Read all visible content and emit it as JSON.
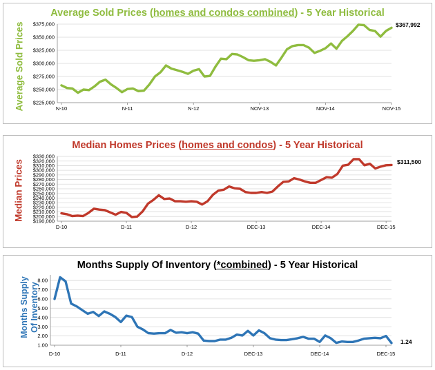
{
  "charts": [
    {
      "color": "#8fbc3f",
      "title_parts": [
        "Average Sold Prices (",
        "homes and condos combined",
        ") - 5 Year Historical"
      ],
      "chart_data": {
        "type": "line",
        "title": "Average Sold Prices (homes and condos combined) - 5 Year Historical",
        "ylabel": "Average Sold Prices",
        "xlabel": "",
        "x_tick_labels": [
          "N-10",
          "N-11",
          "N-12",
          "NOV-13",
          "NOV-14",
          "NOV-15"
        ],
        "y_tick_labels": [
          "$225,000",
          "$250,000",
          "$275,000",
          "$300,000",
          "$325,000",
          "$350,000",
          "$375,000"
        ],
        "y_ticks": [
          225000,
          250000,
          275000,
          300000,
          325000,
          350000,
          375000
        ],
        "ylim": [
          225000,
          375000
        ],
        "grid": true,
        "legend": "none",
        "last_value_label": "$367,992",
        "series": [
          {
            "values": [
              258000,
              253000,
              252000,
              244000,
              250000,
              249000,
              256000,
              265000,
              269000,
              260000,
              253000,
              245000,
              251000,
              252000,
              247000,
              248000,
              260000,
              275000,
              283000,
              296000,
              290000,
              287000,
              284000,
              280000,
              286000,
              289000,
              275000,
              276000,
              294000,
              309000,
              308000,
              318000,
              317000,
              312000,
              306000,
              305000,
              306000,
              308000,
              303000,
              296000,
              311000,
              327000,
              333000,
              335000,
              335000,
              330000,
              320000,
              324000,
              329000,
              338000,
              328000,
              343000,
              352000,
              362000,
              374000,
              373000,
              364000,
              362000,
              351000,
              362000,
              367992
            ]
          }
        ]
      }
    },
    {
      "color": "#c0392b",
      "title_parts": [
        "Median Homes Prices (",
        "homes and condos",
        ") - 5 Year Historical"
      ],
      "chart_data": {
        "type": "line",
        "title": "Median Homes Prices (homes and condos) - 5 Year Historical",
        "ylabel": "Median Prices",
        "xlabel": "",
        "x_tick_labels": [
          "D-10",
          "D-11",
          "D-12",
          "DEC-13",
          "DEC-14",
          "DEC-15"
        ],
        "y_tick_labels": [
          "$190,000",
          "$200,000",
          "$210,000",
          "$220,000",
          "$230,000",
          "$240,000",
          "$250,000",
          "$260,000",
          "$270,000",
          "$280,000",
          "$290,000",
          "$300,000",
          "$310,000",
          "$320,000",
          "$330,000"
        ],
        "y_ticks": [
          190000,
          200000,
          210000,
          220000,
          230000,
          240000,
          250000,
          260000,
          270000,
          280000,
          290000,
          300000,
          310000,
          320000,
          330000
        ],
        "ylim": [
          190000,
          330000
        ],
        "grid": true,
        "legend": "none",
        "last_value_label": "$311,500",
        "series": [
          {
            "values": [
              207000,
              205000,
              201000,
              202000,
              201000,
              208000,
              217000,
              215000,
              214000,
              209000,
              204000,
              210000,
              208000,
              199000,
              200000,
              211000,
              228000,
              236000,
              246000,
              238000,
              239000,
              233000,
              233000,
              232000,
              233000,
              232000,
              226000,
              233000,
              247000,
              256000,
              258000,
              265000,
              261000,
              260000,
              253000,
              251000,
              251000,
              253000,
              251000,
              254000,
              265000,
              275000,
              276000,
              283000,
              280000,
              276000,
              273000,
              273000,
              279000,
              285000,
              284000,
              292000,
              310000,
              312000,
              324000,
              324000,
              311000,
              314000,
              304000,
              308000,
              311000,
              311500
            ]
          }
        ]
      }
    },
    {
      "color": "#2e75b6",
      "title_parts": [
        "Months Supply Of Inventory (",
        "*combined",
        ") - 5 Year Historical"
      ],
      "chart_data": {
        "type": "line",
        "title": "Months Supply Of Inventory (*combined) - 5 Year Historical",
        "ylabel": "Months Supply Of Inventory",
        "xlabel": "",
        "x_tick_labels": [
          "D-10",
          "D-11",
          "D-12",
          "DEC-13",
          "DEC-14",
          "DEC-15"
        ],
        "y_tick_labels": [
          "1.00",
          "2.00",
          "3.00",
          "4.00",
          "5.00",
          "6.00",
          "7.00",
          "8.00"
        ],
        "y_ticks": [
          1,
          2,
          3,
          4,
          5,
          6,
          7,
          8
        ],
        "ylim": [
          1,
          8.6
        ],
        "grid": true,
        "legend": "none",
        "last_value_label": "1.24",
        "series": [
          {
            "values": [
              6.0,
              8.35,
              7.9,
              5.5,
              5.2,
              4.8,
              4.4,
              4.6,
              4.15,
              4.65,
              4.4,
              4.05,
              3.5,
              4.2,
              4.05,
              3.0,
              2.7,
              2.3,
              2.25,
              2.3,
              2.3,
              2.65,
              2.35,
              2.4,
              2.3,
              2.4,
              2.25,
              1.5,
              1.45,
              1.45,
              1.6,
              1.6,
              1.8,
              2.15,
              2.05,
              2.55,
              2.05,
              2.6,
              2.3,
              1.75,
              1.6,
              1.55,
              1.55,
              1.65,
              1.75,
              1.9,
              1.7,
              1.7,
              1.35,
              2.05,
              1.75,
              1.25,
              1.4,
              1.35,
              1.35,
              1.5,
              1.7,
              1.75,
              1.8,
              1.75,
              2.0,
              1.24
            ]
          }
        ]
      }
    }
  ]
}
